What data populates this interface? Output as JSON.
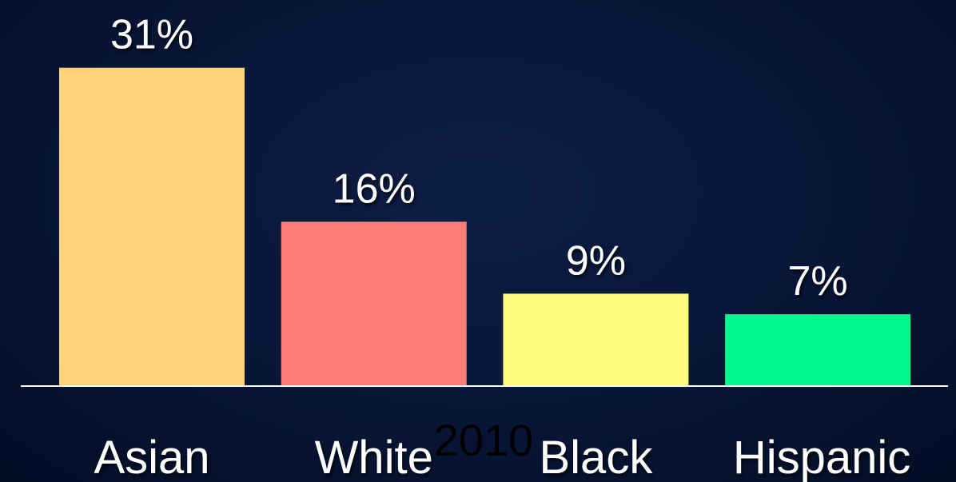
{
  "chart_data": {
    "type": "bar",
    "categories": [
      "Asian",
      "White",
      "Black",
      "Hispanic"
    ],
    "values": [
      31,
      16,
      9,
      7
    ],
    "value_labels": [
      "31%",
      "16%",
      "9%",
      "7%"
    ],
    "colors": [
      "#fdd37a",
      "#ff7f78",
      "#fdfb7b",
      "#00f78e"
    ],
    "period_label": "2010",
    "axis_color": "#ffffff",
    "background_color": "#08173a",
    "grid": false,
    "legend": "none"
  }
}
